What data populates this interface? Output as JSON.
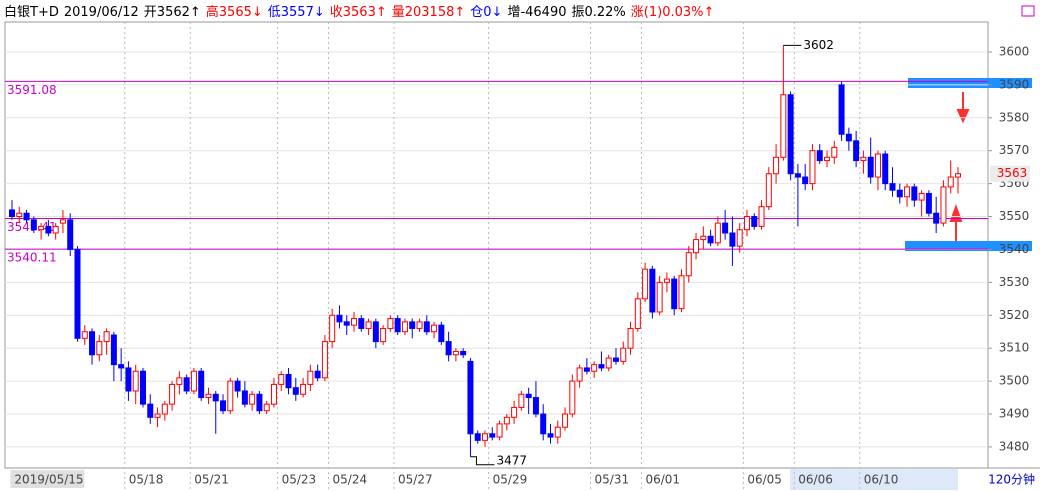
{
  "chart_data": {
    "type": "candlestick",
    "header": [
      {
        "text": "白银T+D",
        "color": "#000000"
      },
      {
        "text": "2019/06/12",
        "color": "#000000"
      },
      {
        "text": "开3562↑",
        "color": "#000000"
      },
      {
        "text": "高3565↓",
        "color": "#ff0000"
      },
      {
        "text": "低3557↓",
        "color": "#0000ff"
      },
      {
        "text": "收3563↑",
        "color": "#ff0000"
      },
      {
        "text": "量203158↑",
        "color": "#ff0000"
      },
      {
        "text": "仓0↓",
        "color": "#0000ff"
      },
      {
        "text": "增-46490",
        "color": "#000000"
      },
      {
        "text": "振0.22%",
        "color": "#000000"
      },
      {
        "text": "涨(1)0.03%↑",
        "color": "#ff0000"
      }
    ],
    "up_color": "#ff0000",
    "down_color": "#0000ff",
    "ylim": [
      3473.6,
      3609.1
    ],
    "yticks": [
      3480,
      3490,
      3500,
      3510,
      3520,
      3530,
      3540,
      3550,
      3560,
      3570,
      3580,
      3590,
      3600
    ],
    "grid": true,
    "hlines": [
      3591.08,
      3549.41,
      3540.11
    ],
    "hline_color": "#cc00cc",
    "high_marker": 3602,
    "low_marker": 3477,
    "period": "120分钟",
    "categories": [
      "2019/05/15",
      null,
      null,
      null,
      null,
      null,
      null,
      null,
      null,
      null,
      null,
      null,
      null,
      null,
      null,
      null,
      "05/18",
      null,
      null,
      null,
      null,
      null,
      null,
      null,
      null,
      "05/21",
      null,
      null,
      null,
      null,
      null,
      null,
      null,
      null,
      null,
      null,
      null,
      "05/23",
      null,
      null,
      null,
      null,
      null,
      null,
      "05/24",
      null,
      null,
      null,
      null,
      null,
      null,
      null,
      null,
      "05/27",
      null,
      null,
      null,
      null,
      null,
      null,
      null,
      null,
      null,
      null,
      null,
      null,
      "05/29",
      null,
      null,
      null,
      null,
      null,
      null,
      null,
      null,
      null,
      null,
      null,
      null,
      null,
      "05/31",
      null,
      null,
      null,
      null,
      null,
      null,
      "06/01",
      null,
      null,
      null,
      null,
      null,
      null,
      null,
      null,
      null,
      null,
      null,
      null,
      null,
      "06/05",
      null,
      null,
      null,
      null,
      null,
      null,
      "06/06",
      null,
      null,
      null,
      null,
      null,
      null,
      null,
      null,
      "06/10",
      null,
      null,
      null,
      null,
      null,
      null,
      null,
      null,
      null,
      null,
      null,
      null,
      null
    ],
    "candles": [
      [
        3552,
        3555,
        3549,
        3550
      ],
      [
        3550,
        3553,
        3548,
        3551
      ],
      [
        3551,
        3552,
        3548,
        3549
      ],
      [
        3549,
        3550,
        3545,
        3546
      ],
      [
        3546,
        3548,
        3543,
        3547
      ],
      [
        3547,
        3549,
        3544,
        3545
      ],
      [
        3545,
        3548,
        3543,
        3547
      ],
      [
        3548,
        3552,
        3545,
        3549
      ],
      [
        3549,
        3551,
        3538,
        3540
      ],
      [
        3540,
        3541,
        3512,
        3513
      ],
      [
        3513,
        3517,
        3511,
        3515
      ],
      [
        3515,
        3516,
        3505,
        3508
      ],
      [
        3508,
        3514,
        3506,
        3512
      ],
      [
        3512,
        3516,
        3508,
        3515
      ],
      [
        3514,
        3515,
        3500,
        3505
      ],
      [
        3505,
        3510,
        3500,
        3504
      ],
      [
        3504,
        3506,
        3494,
        3497
      ],
      [
        3497,
        3505,
        3493,
        3503
      ],
      [
        3503,
        3504,
        3492,
        3493
      ],
      [
        3493,
        3496,
        3487,
        3489
      ],
      [
        3489,
        3492,
        3486,
        3490
      ],
      [
        3490,
        3494,
        3488,
        3493
      ],
      [
        3493,
        3500,
        3491,
        3499
      ],
      [
        3499,
        3503,
        3496,
        3501
      ],
      [
        3501,
        3502,
        3496,
        3497
      ],
      [
        3497,
        3504,
        3496,
        3503
      ],
      [
        3503,
        3504,
        3494,
        3495
      ],
      [
        3495,
        3498,
        3493,
        3496
      ],
      [
        3496,
        3497,
        3484,
        3494
      ],
      [
        3494,
        3496,
        3490,
        3491
      ],
      [
        3491,
        3501,
        3490,
        3500
      ],
      [
        3500,
        3501,
        3495,
        3497
      ],
      [
        3497,
        3500,
        3492,
        3493
      ],
      [
        3493,
        3497,
        3491,
        3496
      ],
      [
        3496,
        3497,
        3490,
        3491
      ],
      [
        3491,
        3494,
        3490,
        3493
      ],
      [
        3493,
        3501,
        3492,
        3499
      ],
      [
        3499,
        3503,
        3497,
        3502
      ],
      [
        3502,
        3504,
        3496,
        3498
      ],
      [
        3498,
        3501,
        3494,
        3496
      ],
      [
        3496,
        3501,
        3495,
        3499
      ],
      [
        3499,
        3505,
        3497,
        3503
      ],
      [
        3503,
        3505,
        3500,
        3501
      ],
      [
        3501,
        3514,
        3500,
        3512
      ],
      [
        3512,
        3522,
        3510,
        3520
      ],
      [
        3520,
        3523,
        3516,
        3518
      ],
      [
        3518,
        3520,
        3514,
        3517
      ],
      [
        3517,
        3521,
        3515,
        3519
      ],
      [
        3519,
        3520,
        3515,
        3516
      ],
      [
        3516,
        3519,
        3514,
        3518
      ],
      [
        3518,
        3519,
        3510,
        3512
      ],
      [
        3512,
        3517,
        3511,
        3516
      ],
      [
        3516,
        3520,
        3515,
        3519
      ],
      [
        3519,
        3520,
        3514,
        3515
      ],
      [
        3515,
        3519,
        3514,
        3518
      ],
      [
        3518,
        3519,
        3513,
        3516
      ],
      [
        3516,
        3519,
        3515,
        3518
      ],
      [
        3518,
        3520,
        3514,
        3515
      ],
      [
        3515,
        3518,
        3513,
        3517
      ],
      [
        3517,
        3518,
        3511,
        3512
      ],
      [
        3512,
        3515,
        3506,
        3508
      ],
      [
        3508,
        3510,
        3506,
        3509
      ],
      [
        3509,
        3510,
        3507,
        3508
      ],
      [
        3506,
        3507,
        3477,
        3484
      ],
      [
        3484,
        3485,
        3481,
        3482
      ],
      [
        3482,
        3485,
        3480,
        3484
      ],
      [
        3484,
        3486,
        3482,
        3483
      ],
      [
        3483,
        3488,
        3482,
        3487
      ],
      [
        3487,
        3490,
        3485,
        3489
      ],
      [
        3489,
        3494,
        3487,
        3492
      ],
      [
        3492,
        3497,
        3491,
        3496
      ],
      [
        3496,
        3498,
        3490,
        3495
      ],
      [
        3495,
        3500,
        3489,
        3490
      ],
      [
        3490,
        3493,
        3482,
        3484
      ],
      [
        3484,
        3487,
        3481,
        3483
      ],
      [
        3483,
        3488,
        3481,
        3486
      ],
      [
        3486,
        3492,
        3485,
        3490
      ],
      [
        3490,
        3502,
        3489,
        3500
      ],
      [
        3500,
        3505,
        3498,
        3504
      ],
      [
        3504,
        3507,
        3502,
        3503
      ],
      [
        3503,
        3506,
        3501,
        3505
      ],
      [
        3505,
        3509,
        3503,
        3504
      ],
      [
        3504,
        3508,
        3503,
        3507
      ],
      [
        3507,
        3510,
        3505,
        3506
      ],
      [
        3506,
        3512,
        3505,
        3510
      ],
      [
        3510,
        3518,
        3508,
        3516
      ],
      [
        3516,
        3527,
        3515,
        3525
      ],
      [
        3525,
        3536,
        3524,
        3534
      ],
      [
        3534,
        3535,
        3519,
        3521
      ],
      [
        3521,
        3532,
        3520,
        3530
      ],
      [
        3530,
        3533,
        3527,
        3531
      ],
      [
        3531,
        3532,
        3520,
        3522
      ],
      [
        3522,
        3534,
        3521,
        3532
      ],
      [
        3532,
        3541,
        3530,
        3539
      ],
      [
        3539,
        3545,
        3537,
        3543
      ],
      [
        3543,
        3547,
        3540,
        3544
      ],
      [
        3544,
        3546,
        3541,
        3542
      ],
      [
        3542,
        3550,
        3541,
        3548
      ],
      [
        3548,
        3552,
        3543,
        3545
      ],
      [
        3545,
        3550,
        3535,
        3541
      ],
      [
        3541,
        3548,
        3539,
        3546
      ],
      [
        3546,
        3552,
        3544,
        3550
      ],
      [
        3550,
        3551,
        3546,
        3547
      ],
      [
        3547,
        3555,
        3546,
        3553
      ],
      [
        3553,
        3565,
        3552,
        3563
      ],
      [
        3563,
        3572,
        3560,
        3568
      ],
      [
        3568,
        3602,
        3567,
        3587
      ],
      [
        3587,
        3588,
        3561,
        3563
      ],
      [
        3563,
        3566,
        3547,
        3562
      ],
      [
        3562,
        3566,
        3558,
        3560
      ],
      [
        3560,
        3572,
        3558,
        3570
      ],
      [
        3570,
        3572,
        3566,
        3567
      ],
      [
        3567,
        3570,
        3565,
        3568
      ],
      [
        3568,
        3573,
        3566,
        3571
      ],
      [
        3590,
        3591,
        3573,
        3575
      ],
      [
        3575,
        3577,
        3570,
        3573
      ],
      [
        3573,
        3576,
        3565,
        3567
      ],
      [
        3567,
        3570,
        3563,
        3568
      ],
      [
        3568,
        3574,
        3560,
        3562
      ],
      [
        3562,
        3570,
        3558,
        3569
      ],
      [
        3569,
        3570,
        3558,
        3560
      ],
      [
        3560,
        3565,
        3556,
        3558
      ],
      [
        3558,
        3560,
        3554,
        3556
      ],
      [
        3556,
        3560,
        3553,
        3559
      ],
      [
        3559,
        3560,
        3553,
        3555
      ],
      [
        3555,
        3558,
        3550,
        3557
      ],
      [
        3557,
        3558,
        3550,
        3551
      ],
      [
        3551,
        3556,
        3545,
        3548
      ],
      [
        3548,
        3561,
        3547,
        3559
      ],
      [
        3559,
        3567,
        3557,
        3562
      ],
      [
        3562,
        3565,
        3557,
        3563
      ]
    ]
  }
}
